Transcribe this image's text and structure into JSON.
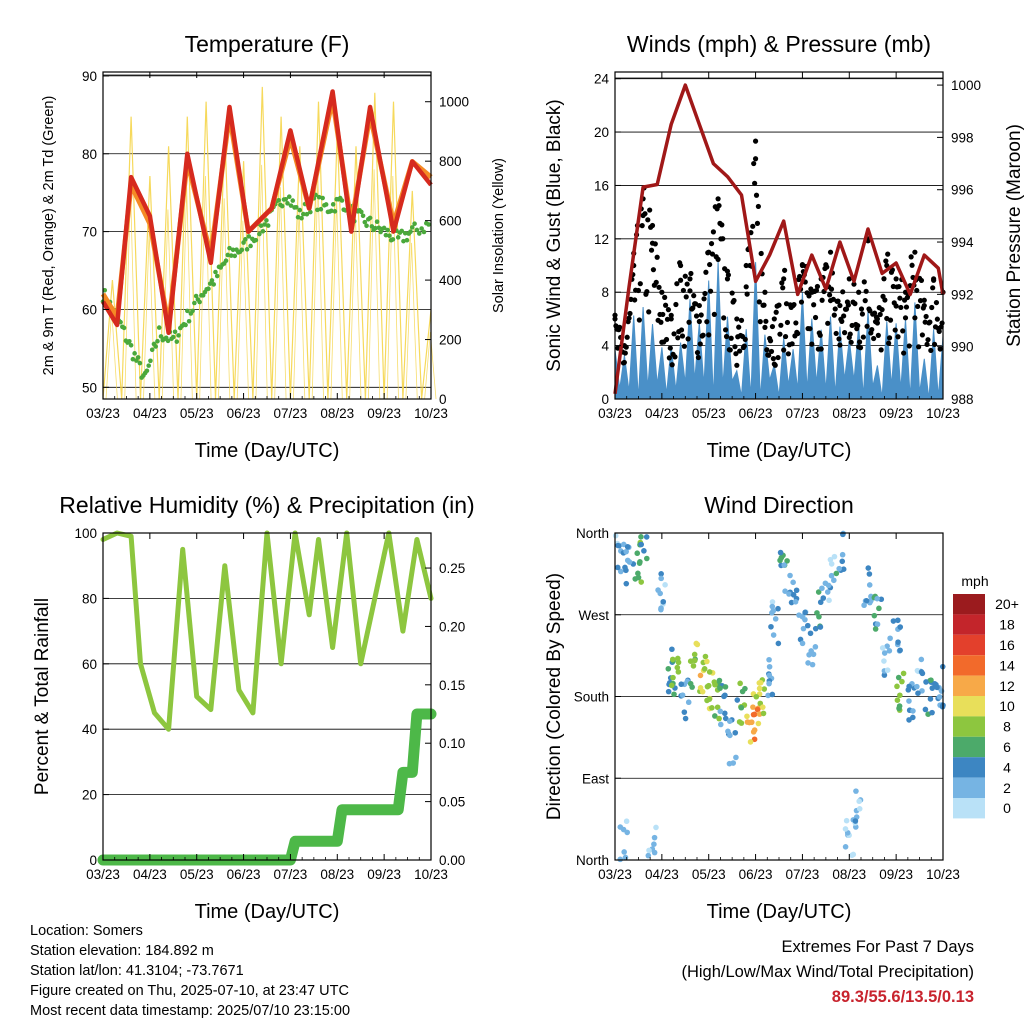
{
  "colors": {
    "temp2m": "#d62a1e",
    "temp9m": "#f58a25",
    "dewpoint": "#4aa83b",
    "solar": "#f5d54a",
    "wind": "#4a90c8",
    "gust": "#000000",
    "pressure": "#a01818",
    "rh": "#8dc63f",
    "precip": "#4db848",
    "extreme_text": "#c8242e"
  },
  "chart_data": [
    {
      "id": "temperature",
      "type": "line",
      "title": "Temperature (F)",
      "xlabel": "Time (Day/UTC)",
      "ylabel": "2m & 9m T (Red, Orange) & 2m Td (Green)",
      "y2label": "Solar Insolation (Yellow)",
      "x_ticks": [
        "03/23",
        "04/23",
        "05/23",
        "06/23",
        "07/23",
        "08/23",
        "09/23",
        "10/23"
      ],
      "ylim": [
        48.5,
        90.5
      ],
      "y_ticks": [
        50,
        60,
        70,
        80,
        90
      ],
      "y2lim": [
        0,
        1100
      ],
      "y2_ticks": [
        0,
        200,
        400,
        600,
        800,
        1000
      ],
      "grid": true,
      "series": [
        {
          "key": "temp2m",
          "axis": "y",
          "style": "line",
          "x": [
            0,
            0.3,
            0.6,
            1.0,
            1.4,
            1.8,
            2.3,
            2.7,
            3.1,
            3.6,
            4.0,
            4.4,
            4.9,
            5.3,
            5.7,
            6.2,
            6.6,
            7.0
          ],
          "y": [
            61,
            58,
            77,
            72,
            57,
            80,
            66,
            86,
            70,
            73,
            83,
            73,
            88,
            70,
            86,
            70,
            79,
            76
          ]
        },
        {
          "key": "temp9m",
          "axis": "y",
          "style": "line",
          "x": [
            0,
            0.3,
            0.6,
            1.0,
            1.4,
            1.8,
            2.3,
            2.7,
            3.1,
            3.6,
            4.0,
            4.4,
            4.9,
            5.3,
            5.7,
            6.2,
            6.6,
            7.0
          ],
          "y": [
            62,
            59,
            76,
            71,
            58,
            79,
            67,
            85,
            70,
            73,
            82,
            73,
            87,
            71,
            85,
            71,
            79,
            77
          ]
        },
        {
          "key": "dewpoint",
          "axis": "y",
          "style": "dots",
          "x": [
            0,
            0.3,
            0.6,
            0.9,
            1.2,
            1.5,
            1.8,
            2.1,
            2.4,
            2.7,
            3.0,
            3.3,
            3.6,
            3.9,
            4.2,
            4.5,
            4.8,
            5.1,
            5.4,
            5.7,
            6.0,
            6.3,
            6.6,
            7.0
          ],
          "y": [
            62,
            59,
            55,
            51,
            57,
            56,
            59,
            62,
            64,
            67,
            68,
            70,
            72,
            75,
            72,
            74,
            73,
            74,
            72,
            71,
            70,
            69,
            70,
            71
          ]
        },
        {
          "key": "solar",
          "axis": "y2",
          "style": "line",
          "x": [
            0,
            0.2,
            0.4,
            0.6,
            0.8,
            1.0,
            1.2,
            1.4,
            1.6,
            1.8,
            2.0,
            2.2,
            2.4,
            2.6,
            2.8,
            3.0,
            3.2,
            3.4,
            3.6,
            3.8,
            4.0,
            4.2,
            4.4,
            4.6,
            4.8,
            5.0,
            5.2,
            5.4,
            5.6,
            5.8,
            6.0,
            6.2,
            6.4,
            6.6,
            6.8,
            7.0
          ],
          "y": [
            0,
            400,
            0,
            950,
            0,
            750,
            0,
            850,
            0,
            950,
            0,
            1000,
            0,
            900,
            0,
            800,
            0,
            1050,
            0,
            950,
            0,
            850,
            0,
            1000,
            0,
            900,
            0,
            850,
            0,
            1030,
            0,
            1000,
            0,
            700,
            0,
            300
          ]
        }
      ]
    },
    {
      "id": "winds",
      "type": "scatter",
      "title": "Winds (mph) & Pressure (mb)",
      "xlabel": "Time (Day/UTC)",
      "ylabel": "Sonic Wind & Gust (Blue, Black)",
      "y2label": "Station Pressure (Maroon)",
      "x_ticks": [
        "03/23",
        "04/23",
        "05/23",
        "06/23",
        "07/23",
        "08/23",
        "09/23",
        "10/23"
      ],
      "ylim": [
        0,
        24.5
      ],
      "y_ticks": [
        0,
        4,
        8,
        12,
        16,
        20,
        24
      ],
      "y2lim": [
        988,
        1000.5
      ],
      "y2_ticks": [
        988,
        990,
        992,
        994,
        996,
        998,
        1000
      ],
      "grid": true,
      "series": [
        {
          "key": "gust",
          "axis": "y",
          "style": "dots",
          "x": [
            0,
            0.2,
            0.4,
            0.6,
            0.8,
            1.0,
            1.2,
            1.4,
            1.6,
            1.8,
            2.0,
            2.2,
            2.4,
            2.6,
            2.8,
            3.0,
            3.2,
            3.4,
            3.6,
            3.8,
            4.0,
            4.2,
            4.4,
            4.6,
            4.8,
            5.0,
            5.2,
            5.4,
            5.6,
            5.8,
            6.0,
            6.2,
            6.4,
            6.6,
            6.8,
            7.0
          ],
          "y": [
            6,
            4,
            10,
            15,
            13,
            8,
            6,
            10,
            9,
            7,
            11,
            15,
            9,
            6,
            10,
            18,
            8,
            6,
            9,
            7,
            10,
            8,
            9,
            11,
            7,
            9,
            8,
            12,
            6,
            10,
            9,
            8,
            11,
            7,
            9,
            8
          ]
        },
        {
          "key": "wind",
          "axis": "y",
          "style": "line",
          "x": [
            0,
            0.2,
            0.4,
            0.6,
            0.8,
            1.0,
            1.2,
            1.4,
            1.6,
            1.8,
            2.0,
            2.2,
            2.4,
            2.6,
            2.8,
            3.0,
            3.2,
            3.4,
            3.6,
            3.8,
            4.0,
            4.2,
            4.4,
            4.6,
            4.8,
            5.0,
            5.2,
            5.4,
            5.6,
            5.8,
            6.0,
            6.2,
            6.4,
            6.6,
            6.8,
            7.0
          ],
          "y": [
            2,
            1,
            4,
            6,
            5,
            3,
            2,
            4,
            5,
            3,
            6,
            8,
            4,
            2,
            5,
            10,
            3,
            2,
            4,
            3,
            5,
            4,
            4,
            6,
            3,
            4,
            4,
            6,
            2,
            5,
            4,
            3,
            6,
            3,
            4,
            4
          ]
        },
        {
          "key": "pressure",
          "axis": "y2",
          "style": "line",
          "x": [
            0,
            0.3,
            0.6,
            0.9,
            1.2,
            1.5,
            1.8,
            2.1,
            2.4,
            2.7,
            3.0,
            3.3,
            3.6,
            3.9,
            4.2,
            4.5,
            4.8,
            5.1,
            5.4,
            5.7,
            6.0,
            6.3,
            6.6,
            6.9,
            7.0
          ],
          "y": [
            988.2,
            992.3,
            996.1,
            996.2,
            998.5,
            1000.0,
            998.5,
            997.0,
            996.5,
            995.8,
            992.5,
            993.5,
            994.8,
            992.0,
            993.5,
            992.2,
            994.0,
            992.5,
            994.5,
            992.8,
            993.2,
            992.0,
            993.5,
            993.0,
            992.0
          ]
        }
      ]
    },
    {
      "id": "humidity",
      "type": "line",
      "title": "Relative Humidity (%) & Precipitation (in)",
      "xlabel": "Time (Day/UTC)",
      "ylabel": "Percent & Total Rainfall",
      "x_ticks": [
        "03/23",
        "04/23",
        "05/23",
        "06/23",
        "07/23",
        "08/23",
        "09/23",
        "10/23"
      ],
      "ylim": [
        0,
        100
      ],
      "y_ticks": [
        0,
        20,
        40,
        60,
        80,
        100
      ],
      "y2lim": [
        0,
        0.28
      ],
      "y2_ticks": [
        "0.00",
        "0.05",
        "0.10",
        "0.15",
        "0.20",
        "0.25"
      ],
      "grid": true,
      "series": [
        {
          "key": "rh",
          "axis": "y",
          "style": "line",
          "x": [
            0,
            0.3,
            0.6,
            0.8,
            1.1,
            1.4,
            1.7,
            2.0,
            2.3,
            2.6,
            2.9,
            3.2,
            3.5,
            3.8,
            4.1,
            4.4,
            4.6,
            4.9,
            5.2,
            5.5,
            5.8,
            6.1,
            6.4,
            6.7,
            7.0
          ],
          "y": [
            98,
            100,
            99,
            60,
            45,
            40,
            95,
            50,
            46,
            90,
            52,
            45,
            100,
            60,
            100,
            75,
            98,
            65,
            100,
            60,
            80,
            100,
            70,
            98,
            80
          ]
        },
        {
          "key": "precip",
          "axis": "y2",
          "style": "steps",
          "x": [
            0,
            4.0,
            4.1,
            5.0,
            5.1,
            6.3,
            6.4,
            6.6,
            6.7,
            7.0
          ],
          "y": [
            0.0,
            0.0,
            0.016,
            0.016,
            0.043,
            0.043,
            0.075,
            0.075,
            0.125,
            0.125
          ]
        }
      ]
    },
    {
      "id": "wind_direction",
      "type": "scatter",
      "title": "Wind Direction",
      "xlabel": "Time (Day/UTC)",
      "ylabel": "Direction (Colored By Speed)",
      "x_ticks": [
        "03/23",
        "04/23",
        "05/23",
        "06/23",
        "07/23",
        "08/23",
        "09/23",
        "10/23"
      ],
      "y_ticks": [
        "North",
        "East",
        "South",
        "West",
        "North"
      ],
      "ylim": [
        0,
        360
      ],
      "grid": true,
      "legend": {
        "title": "mph",
        "placement": "right",
        "labels": [
          "20+",
          "18",
          "16",
          "14",
          "12",
          "10",
          "8",
          "6",
          "4",
          "2",
          "0"
        ],
        "colors": [
          "#9b1b1e",
          "#c3252b",
          "#e3402c",
          "#f26a2b",
          "#f7a948",
          "#e8df5a",
          "#8dc63f",
          "#4caa6a",
          "#3d86c2",
          "#76b4e3",
          "#b9e1f7"
        ]
      },
      "x": [
        0.1,
        0.2,
        0.3,
        0.5,
        0.6,
        0.8,
        1.0,
        1.2,
        1.3,
        1.5,
        1.7,
        1.9,
        2.0,
        2.2,
        2.3,
        2.5,
        2.7,
        2.9,
        3.0,
        3.1,
        3.3,
        3.4,
        3.6,
        3.8,
        4.0,
        4.2,
        4.4,
        4.6,
        4.8,
        5.0,
        5.2,
        5.4,
        5.6,
        5.8,
        6.0,
        6.1,
        6.3,
        6.5,
        6.7,
        6.9,
        7.0
      ],
      "y": [
        340,
        20,
        320,
        330,
        345,
        15,
        300,
        210,
        200,
        180,
        215,
        200,
        190,
        175,
        170,
        130,
        175,
        150,
        165,
        180,
        200,
        260,
        320,
        290,
        250,
        240,
        280,
        310,
        340,
        20,
        60,
        300,
        270,
        220,
        240,
        190,
        170,
        200,
        180,
        170,
        190
      ],
      "speed": [
        2,
        1,
        3,
        7,
        4,
        1,
        2,
        5,
        7,
        3,
        8,
        10,
        9,
        7,
        4,
        3,
        6,
        12,
        11,
        9,
        3,
        2,
        4,
        3,
        2,
        3,
        4,
        2,
        3,
        1,
        2,
        3,
        4,
        2,
        3,
        7,
        3,
        2,
        4,
        3,
        4
      ]
    }
  ],
  "info": {
    "location": "Location: Somers",
    "elevation": "Station elevation: 184.892 m",
    "latlon": "Station lat/lon: 41.3104; -73.7671",
    "created": "Figure created on Thu, 2025-07-10, at 23:47 UTC",
    "recent": "Most recent data timestamp: 2025/07/10 23:15:00"
  },
  "extremes": {
    "line1": "Extremes For Past 7 Days",
    "line2": "(High/Low/Max Wind/Total Precipitation)",
    "values": "89.3/55.6/13.5/0.13"
  }
}
